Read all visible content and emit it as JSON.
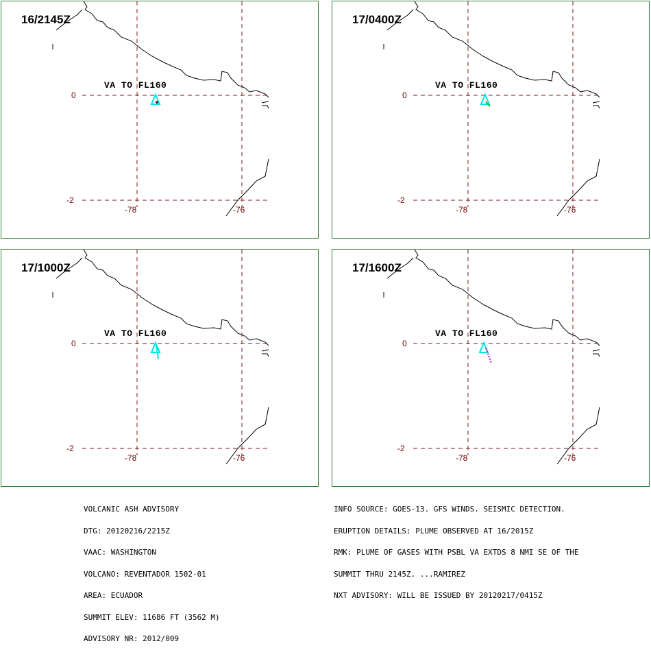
{
  "panels": [
    {
      "time": "16/2145Z",
      "plume": "dot"
    },
    {
      "time": "17/0400Z",
      "plume": "green"
    },
    {
      "time": "17/1000Z",
      "plume": "cyan"
    },
    {
      "time": "17/1600Z",
      "plume": "magenta"
    }
  ],
  "map_labels": {
    "va_text": "VA TO FL160",
    "lat_top": "0",
    "lat_bottom": "-2",
    "lon_left": "-78",
    "lon_right": "-76"
  },
  "colors": {
    "border": "#2e7d32",
    "grid": "#7a1a1a",
    "coast": "#000000",
    "volcano": "#00e5e5",
    "plume_green": "#22bb22",
    "plume_magenta": "#cc33cc"
  },
  "advisory_left": [
    "VOLCANIC ASH ADVISORY",
    "DTG: 20120216/2215Z",
    "VAAC: WASHINGTON",
    "VOLCANO: REVENTADOR 1502-01",
    "AREA: ECUADOR",
    "SUMMIT ELEV: 11686 FT (3562 M)",
    "ADVISORY NR: 2012/009"
  ],
  "advisory_right": [
    "INFO SOURCE: GOES-13. GFS WINDS. SEISMIC DETECTION.",
    "ERUPTION DETAILS: PLUME OBSERVED AT 16/2015Z",
    "RMK: PLUME OF GASES WITH PSBL VA EXTDS 8 NMI SE OF THE",
    "SUMMIT THRU 2145Z. ...RAMIREZ",
    "NXT ADVISORY: WILL BE ISSUED BY 20120217/0415Z"
  ]
}
